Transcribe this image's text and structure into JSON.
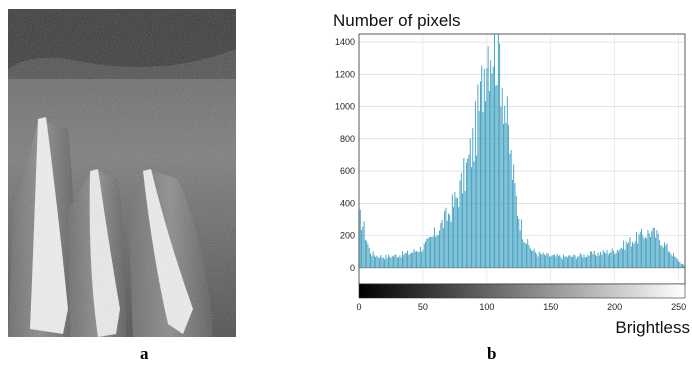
{
  "panels": {
    "a": {
      "label": "a"
    },
    "b": {
      "label": "b"
    }
  },
  "chart_data": {
    "type": "bar",
    "ylabel": "Number of pixels",
    "xlabel": "Brightless",
    "xlim": [
      0,
      255
    ],
    "ylim": [
      -100,
      1450
    ],
    "yticks": [
      0,
      200,
      400,
      600,
      800,
      1000,
      1200,
      1400
    ],
    "xticks": [
      0,
      50,
      100,
      150,
      200,
      250
    ],
    "bar_color": "#3a9dbf",
    "colorbar": "grayscale",
    "grid": true,
    "profile_points": [
      [
        0,
        320
      ],
      [
        2,
        300
      ],
      [
        4,
        250
      ],
      [
        6,
        180
      ],
      [
        8,
        120
      ],
      [
        10,
        90
      ],
      [
        15,
        75
      ],
      [
        20,
        70
      ],
      [
        30,
        80
      ],
      [
        40,
        95
      ],
      [
        50,
        130
      ],
      [
        55,
        170
      ],
      [
        60,
        220
      ],
      [
        65,
        280
      ],
      [
        70,
        340
      ],
      [
        75,
        420
      ],
      [
        80,
        520
      ],
      [
        85,
        650
      ],
      [
        90,
        820
      ],
      [
        95,
        1050
      ],
      [
        98,
        1300
      ],
      [
        100,
        1450
      ],
      [
        103,
        1450
      ],
      [
        106,
        1450
      ],
      [
        110,
        1380
      ],
      [
        113,
        1150
      ],
      [
        116,
        900
      ],
      [
        120,
        620
      ],
      [
        124,
        380
      ],
      [
        128,
        230
      ],
      [
        132,
        150
      ],
      [
        136,
        110
      ],
      [
        140,
        90
      ],
      [
        150,
        75
      ],
      [
        160,
        70
      ],
      [
        170,
        75
      ],
      [
        180,
        85
      ],
      [
        190,
        95
      ],
      [
        200,
        110
      ],
      [
        205,
        130
      ],
      [
        210,
        160
      ],
      [
        215,
        180
      ],
      [
        220,
        200
      ],
      [
        225,
        220
      ],
      [
        228,
        230
      ],
      [
        232,
        210
      ],
      [
        236,
        180
      ],
      [
        240,
        140
      ],
      [
        244,
        100
      ],
      [
        248,
        60
      ],
      [
        252,
        30
      ],
      [
        255,
        10
      ]
    ]
  }
}
